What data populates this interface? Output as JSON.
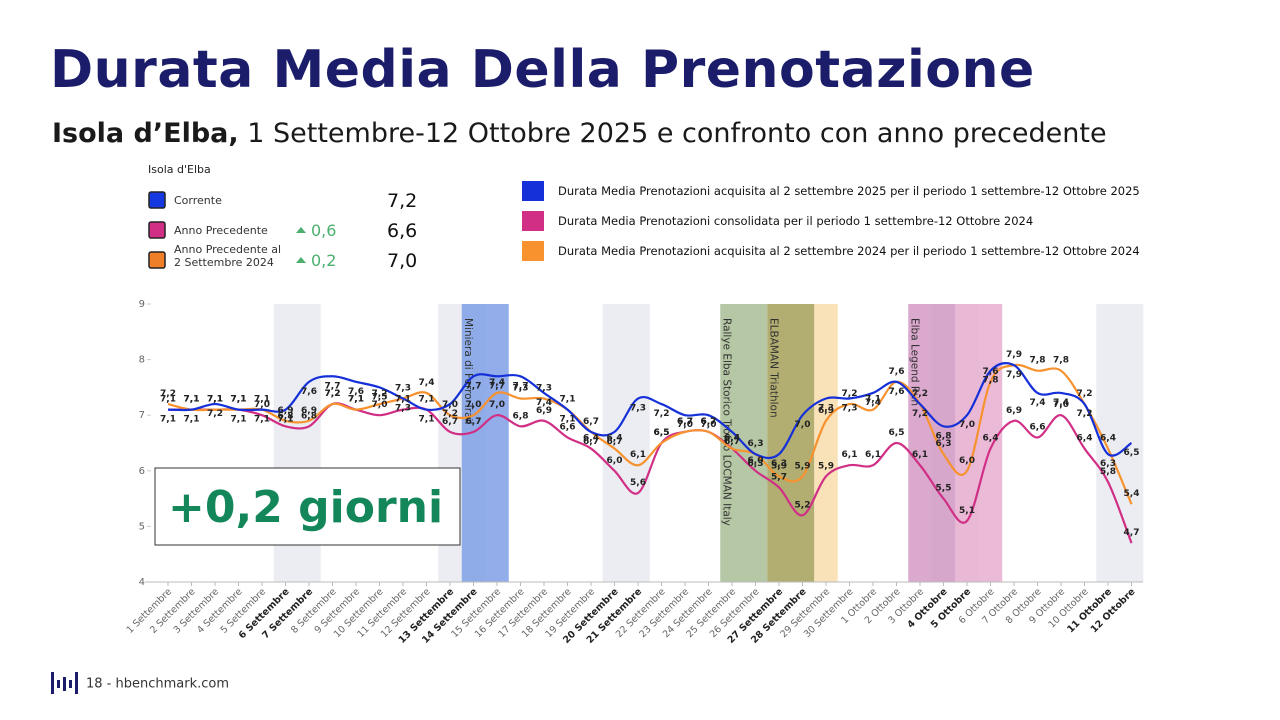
{
  "header": {
    "title": "Durata Media Della Prenotazione",
    "subtitle_bold": "Isola d’Elba,",
    "subtitle": "1 Settembre-12 Ottobre 2025 e confronto con anno precedente"
  },
  "summary": {
    "title": "Isola d'Elba",
    "rows": [
      {
        "label": "Corrente",
        "value": "7,2",
        "color": "#1538e0"
      },
      {
        "label": "Anno Precedente",
        "change": "0,6",
        "value": "6,6",
        "color": "#d12f86"
      },
      {
        "label": "Anno Precedente al 2 Settembre 2024",
        "change": "0,2",
        "value": "7,0",
        "color": "#f07f2a"
      }
    ]
  },
  "chart_data": {
    "type": "line",
    "categories": [
      "1 Settembre",
      "2 Settembre",
      "3 Settembre",
      "4 Settembre",
      "5 Settembre",
      "6 Settembre",
      "7 Settembre",
      "8 Settembre",
      "9 Settembre",
      "10 Settembre",
      "11 Settembre",
      "12 Settembre",
      "13 Settembre",
      "14 Settembre",
      "15 Settembre",
      "16 Settembre",
      "17 Settembre",
      "18 Settembre",
      "19 Settembre",
      "20 Settembre",
      "21 Settembre",
      "22 Settembre",
      "23 Settembre",
      "24 Settembre",
      "25 Settembre",
      "26 Settembre",
      "27 Settembre",
      "28 Settembre",
      "29 Settembre",
      "30 Settembre",
      "1 Ottobre",
      "2 Ottobre",
      "3 Ottobre",
      "4 Ottobre",
      "5 Ottobre",
      "6 Ottobre",
      "7 Ottobre",
      "8 Ottobre",
      "9 Ottobre",
      "10 Ottobre",
      "11 Ottobre",
      "12 Ottobre"
    ],
    "series": [
      {
        "name": "Durata Media Prenotazioni acquisita al 2 settembre 2025 per il periodo 1 settembre-12 Ottobre 2025",
        "color": "#1530d8",
        "values": [
          7.1,
          7.1,
          7.2,
          7.1,
          7.1,
          7.1,
          7.6,
          7.7,
          7.6,
          7.5,
          7.3,
          7.1,
          7.2,
          7.7,
          7.7,
          7.7,
          7.4,
          7.1,
          6.7,
          6.7,
          7.3,
          7.2,
          7.0,
          7.0,
          6.7,
          6.3,
          6.3,
          7.0,
          7.3,
          7.3,
          7.4,
          7.6,
          7.2,
          6.8,
          7.0,
          7.8,
          7.9,
          7.4,
          7.4,
          7.2,
          6.3,
          6.5
        ],
        "value_labels": [
          "7,1",
          "7,1",
          "7,2",
          "7,1",
          "7,1",
          "7,1",
          "7,6",
          "7,7",
          "7,6",
          "7,5",
          "7,3",
          "7,1",
          "7,2",
          "7,7",
          "7,7",
          "7,7",
          "7,4",
          "7,1",
          "6,7",
          "6,7",
          "7,3",
          "7,2",
          "7,0",
          "7,0",
          "6,7",
          "6,3",
          "6,3",
          "7,0",
          "7,3",
          "7,3",
          "7,4",
          "7,6",
          "7,2",
          "6,8",
          "7,0",
          "7,8",
          "7,9",
          "7,4",
          "7,4",
          "7,2",
          "6,3",
          "6,5"
        ]
      },
      {
        "name": "Durata Media Prenotazioni consolidata per il periodo 1 settembre-12 Ottobre 2024",
        "color": "#d12f86",
        "values": [
          7.1,
          7.1,
          7.1,
          7.1,
          7.0,
          6.8,
          6.8,
          7.2,
          7.1,
          7.0,
          7.1,
          7.1,
          6.7,
          6.7,
          7.0,
          6.8,
          6.9,
          6.6,
          6.4,
          6.0,
          5.6,
          6.5,
          6.7,
          6.7,
          6.4,
          6.0,
          5.7,
          5.2,
          5.9,
          6.1,
          6.1,
          6.5,
          6.1,
          5.5,
          5.1,
          6.4,
          6.9,
          6.6,
          7.0,
          6.4,
          5.8,
          4.7
        ],
        "value_labels": [
          "7,1",
          "7,1",
          "7,1",
          "7,1",
          "7,0",
          "6,8",
          "6,8",
          "7,2",
          "7,1",
          "7,0",
          "7,1",
          "7,1",
          "6,7",
          "6,7",
          "7,0",
          "6,8",
          "6,9",
          "6,6",
          "6,4",
          "6,0",
          "5,6",
          "6,5",
          "6,7",
          "6,7",
          "6,4",
          "6,0",
          "5,7",
          "5,2",
          "5,9",
          "6,1",
          "6,1",
          "6,5",
          "6,1",
          "5,5",
          "5,1",
          "6,4",
          "6,9",
          "6,6",
          "7,0",
          "6,4",
          "5,8",
          "4,7"
        ]
      },
      {
        "name": "Durata Media Prenotazioni acquisita al 2 settembre 2024 per il periodo 1 settembre-12 Ottobre 2024",
        "color": "#f7922e",
        "values": [
          7.2,
          7.1,
          7.1,
          7.1,
          7.1,
          6.9,
          6.9,
          7.2,
          7.1,
          7.2,
          7.3,
          7.4,
          7.0,
          7.0,
          7.4,
          7.3,
          7.3,
          7.1,
          6.7,
          6.4,
          6.1,
          6.5,
          6.7,
          6.7,
          6.4,
          6.3,
          5.9,
          5.9,
          6.9,
          7.2,
          7.1,
          7.6,
          7.2,
          6.3,
          6.0,
          7.6,
          7.9,
          7.8,
          7.8,
          7.2,
          6.4,
          5.4
        ],
        "value_labels": [
          "7,2",
          "7,1",
          "7,1",
          "7,1",
          "7,1",
          "6,9",
          "6,9",
          "7,2",
          "7,1",
          "7,2",
          "7,3",
          "7,4",
          "7,0",
          "7,0",
          "7,4",
          "7,3",
          "7,3",
          "7,1",
          "6,7",
          "6,4",
          "6,1",
          "6,5",
          "6,7",
          "6,7",
          "6,4",
          "6,3",
          "5,9",
          "5,9",
          "6,9",
          "7,2",
          "7,1",
          "7,6",
          "7,2",
          "6,3",
          "6,0",
          "7,6",
          "7,9",
          "7,8",
          "7,8",
          "7,2",
          "6,4",
          "5,4"
        ]
      }
    ],
    "events": [
      {
        "label": "Miniera di Ferro Trail",
        "color": "#7f9fe6"
      },
      {
        "label": "Rallye Elba Storico Trofeo LOCMAN Italy",
        "color": "#a9bd96"
      },
      {
        "label": "ELBAMAN Triathlon",
        "color": "#a8a25c"
      },
      {
        "color": "#f8dcab"
      },
      {
        "label": "Elba Legend Run",
        "color": "#d49ac4"
      },
      {
        "color": "#e8aed0"
      }
    ],
    "ylim": [
      4,
      9
    ],
    "yticks": [
      4,
      5,
      6,
      7,
      8,
      9
    ],
    "grid": false,
    "annotation": "+0,2 giorni"
  },
  "footer": {
    "page": "18 - hbenchmark.com"
  }
}
